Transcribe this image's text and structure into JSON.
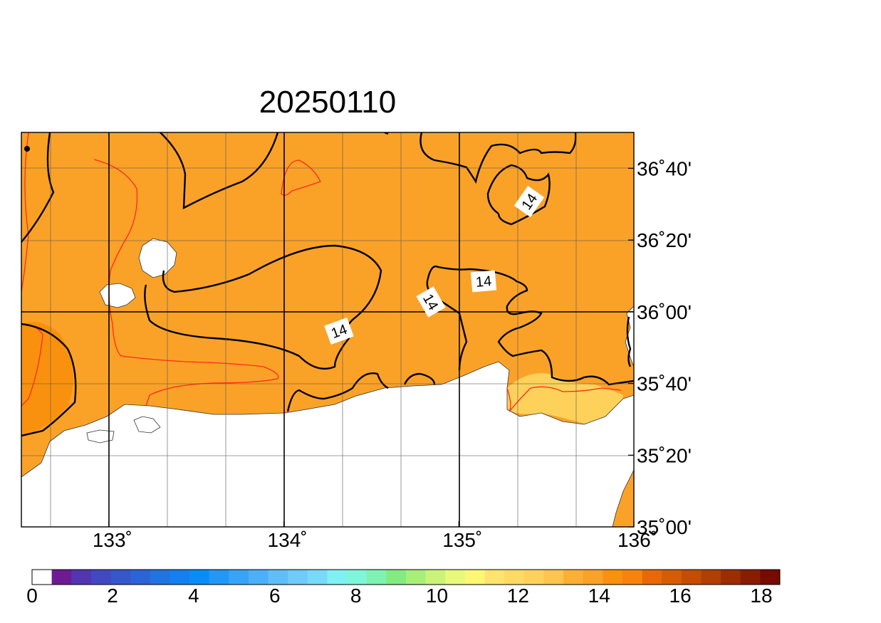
{
  "title": "20250110",
  "map": {
    "x_ticks": [
      {
        "value": 133,
        "label": "133˚"
      },
      {
        "value": 134,
        "label": "134˚"
      },
      {
        "value": 135,
        "label": "135˚"
      },
      {
        "value": 136,
        "label": "136˚"
      }
    ],
    "y_ticks": [
      {
        "value": 36.6667,
        "label": "36˚40'"
      },
      {
        "value": 36.3333,
        "label": "36˚20'"
      },
      {
        "value": 36.0,
        "label": "36˚00'"
      },
      {
        "value": 35.6667,
        "label": "35˚40'"
      },
      {
        "value": 35.3333,
        "label": "35˚20'"
      },
      {
        "value": 35.0,
        "label": "35˚00'"
      }
    ],
    "contour_labels": [
      "14",
      "14",
      "14",
      "14"
    ]
  },
  "colors": {
    "land": "#ffffff",
    "sea_14": "#faa228",
    "sea_15": "#f9910f",
    "sea_13": "#fed25a",
    "contour_black": "#000000",
    "contour_red": "#ff2a1a"
  },
  "colorbar": {
    "labels": [
      "0",
      "2",
      "4",
      "6",
      "8",
      "10",
      "12",
      "14",
      "16",
      "18"
    ],
    "colors": [
      "#ffffff",
      "#6e1a93",
      "#5236b1",
      "#4248c2",
      "#3556cc",
      "#2a64d8",
      "#1f74e2",
      "#137ff0",
      "#0a8cf8",
      "#2198f7",
      "#36a4f8",
      "#4bb0f9",
      "#5fbef9",
      "#6ecbfa",
      "#78dafa",
      "#7ff1f4",
      "#7ef6d9",
      "#7ef2b0",
      "#82ec80",
      "#a6f078",
      "#c9f478",
      "#e8f97a",
      "#fdf774",
      "#fee36c",
      "#fed963",
      "#fed25a",
      "#fec44d",
      "#fdaf34",
      "#faa228",
      "#f9910f",
      "#f9830a",
      "#e86806",
      "#d65b04",
      "#c44d02",
      "#b13f01",
      "#9c2d00",
      "#8a1c00",
      "#780a00"
    ]
  }
}
